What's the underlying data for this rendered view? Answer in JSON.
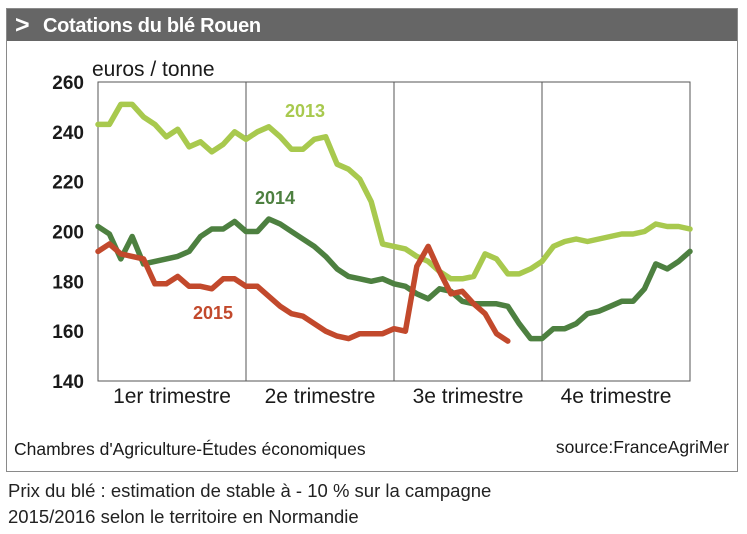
{
  "header": {
    "chevron": ">",
    "title": "Cotations du blé Rouen"
  },
  "footer": {
    "left": "Chambres d'Agriculture-Études économiques",
    "right": "source:FranceAgriMer"
  },
  "caption": {
    "line1": "Prix du blé : estimation de stable à - 10 % sur la campagne",
    "line2": "2015/2016 selon le territoire en Normandie"
  },
  "chart_data": {
    "type": "line",
    "title": "Cotations du blé Rouen",
    "ylabel": "euros / tonne",
    "xlabel": "",
    "ylim": [
      140,
      260
    ],
    "yticks": [
      140,
      160,
      180,
      200,
      220,
      240,
      260
    ],
    "categories": [
      "1er trimestre",
      "2e trimestre",
      "3e trimestre",
      "4e trimestre"
    ],
    "xlim": [
      0,
      52
    ],
    "grid": "vertical lines between quarters",
    "series": [
      {
        "name": "2013",
        "color": "#a8c94e",
        "x": [
          0,
          1,
          2,
          3,
          4,
          5,
          6,
          7,
          8,
          9,
          10,
          11,
          12,
          13,
          14,
          15,
          16,
          17,
          18,
          19,
          20,
          21,
          22,
          23,
          24,
          25,
          26,
          27,
          28,
          29,
          30,
          31,
          32,
          33,
          34,
          35,
          36,
          37,
          38,
          39,
          40,
          41,
          42,
          43,
          44,
          45,
          46,
          47,
          48,
          49,
          50,
          51,
          52
        ],
        "values": [
          243,
          243,
          251,
          251,
          246,
          243,
          238,
          241,
          234,
          236,
          232,
          235,
          240,
          237,
          240,
          242,
          238,
          233,
          233,
          237,
          238,
          227,
          225,
          221,
          212,
          195,
          194,
          193,
          190,
          188,
          184,
          181,
          181,
          182,
          191,
          189,
          183,
          183,
          185,
          188,
          194,
          196,
          197,
          196,
          197,
          198,
          199,
          199,
          200,
          203,
          202,
          202,
          201
        ]
      },
      {
        "name": "2014",
        "color": "#4d8040",
        "x": [
          0,
          1,
          2,
          3,
          4,
          5,
          6,
          7,
          8,
          9,
          10,
          11,
          12,
          13,
          14,
          15,
          16,
          17,
          18,
          19,
          20,
          21,
          22,
          23,
          24,
          25,
          26,
          27,
          28,
          29,
          30,
          31,
          32,
          33,
          34,
          35,
          36,
          37,
          38,
          39,
          40,
          41,
          42,
          43,
          44,
          45,
          46,
          47,
          48,
          49,
          50,
          51,
          52
        ],
        "values": [
          202,
          199,
          189,
          198,
          187,
          188,
          189,
          190,
          192,
          198,
          201,
          201,
          204,
          200,
          200,
          205,
          203,
          200,
          197,
          194,
          190,
          185,
          182,
          181,
          180,
          181,
          179,
          178,
          175,
          173,
          177,
          176,
          172,
          171,
          171,
          171,
          170,
          163,
          157,
          157,
          161,
          161,
          163,
          167,
          168,
          170,
          172,
          172,
          177,
          187,
          185,
          188,
          192
        ]
      },
      {
        "name": "2015",
        "color": "#c2492c",
        "x": [
          0,
          1,
          2,
          3,
          4,
          5,
          6,
          7,
          8,
          9,
          10,
          11,
          12,
          13,
          14,
          15,
          16,
          17,
          18,
          19,
          20,
          21,
          22,
          23,
          24,
          25,
          26,
          27,
          28,
          29,
          30,
          31,
          32,
          33,
          34,
          35,
          36
        ],
        "values": [
          192,
          195,
          191,
          190,
          189,
          179,
          179,
          182,
          178,
          178,
          177,
          181,
          181,
          178,
          178,
          174,
          170,
          167,
          166,
          163,
          160,
          158,
          157,
          159,
          159,
          159,
          161,
          160,
          186,
          194,
          184,
          175,
          176,
          171,
          167,
          159,
          156
        ]
      }
    ],
    "annotations": [
      {
        "text": "2013",
        "series": "2013"
      },
      {
        "text": "2014",
        "series": "2014"
      },
      {
        "text": "2015",
        "series": "2015"
      }
    ]
  }
}
